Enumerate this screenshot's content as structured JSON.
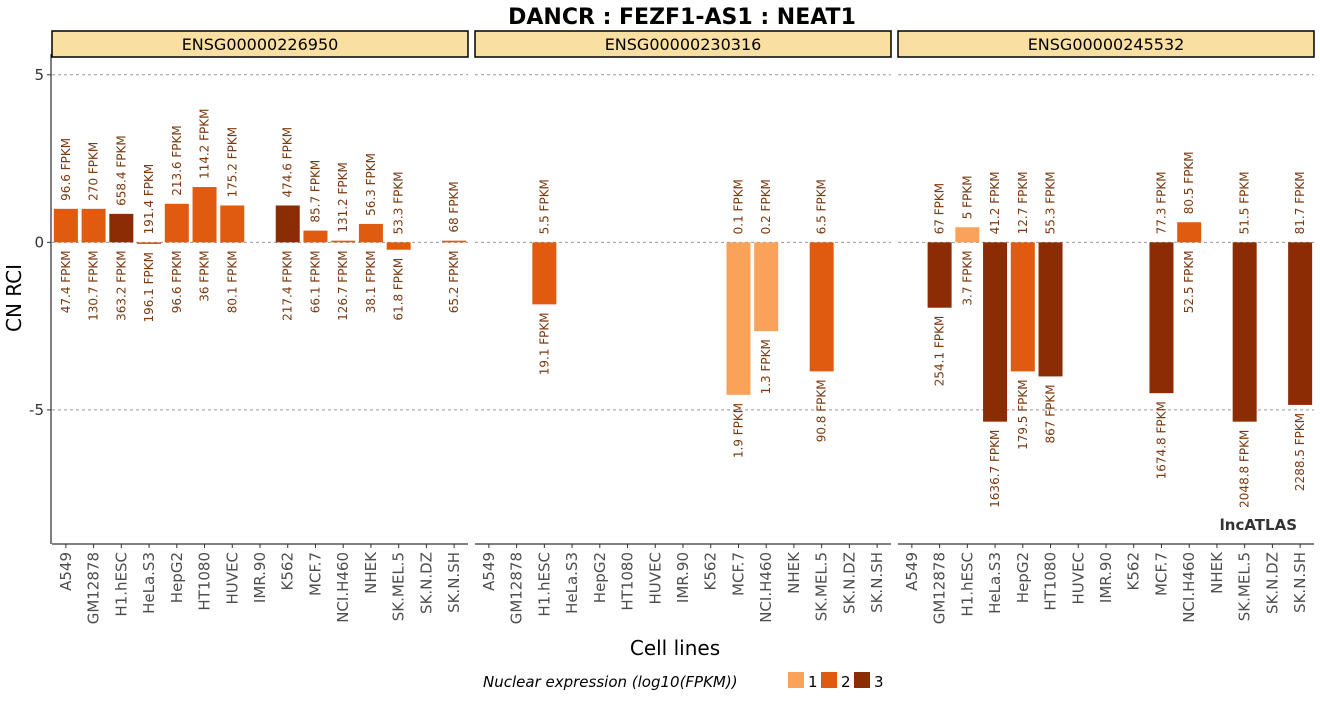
{
  "chart_data": {
    "type": "bar",
    "title": "DANCR : FEZF1-AS1 : NEAT1",
    "xlabel": "Cell lines",
    "ylabel": "CN RCI",
    "ylim": [
      -9.0,
      5.5
    ],
    "yticks": [
      5,
      0,
      -5
    ],
    "ytick_labels": [
      "5",
      "0",
      "-5"
    ],
    "grid": "dashed horizontal at ticks",
    "categories": [
      "A549",
      "GM12878",
      "H1.hESC",
      "HeLa.S3",
      "HepG2",
      "HT1080",
      "HUVEC",
      "IMR.90",
      "K562",
      "MCF.7",
      "NCI.H460",
      "NHEK",
      "SK.MEL.5",
      "SK.N.DZ",
      "SK.N.SH"
    ],
    "legend": {
      "title": "Nuclear expression (log10(FPKM))",
      "position": "bottom",
      "levels": [
        {
          "label": "1",
          "color": "#F9A25A"
        },
        {
          "label": "2",
          "color": "#E05A10"
        },
        {
          "label": "3",
          "color": "#8C2C05"
        }
      ]
    },
    "watermark": "lncATLAS",
    "panels": [
      {
        "strip": "ENSG00000226950",
        "bars": [
          {
            "cell": "A549",
            "value": 1.0,
            "level": 2,
            "top": "96.6 FPKM",
            "bottom": "47.4 FPKM"
          },
          {
            "cell": "GM12878",
            "value": 1.0,
            "level": 2,
            "top": "270 FPKM",
            "bottom": "130.7 FPKM"
          },
          {
            "cell": "H1.hESC",
            "value": 0.85,
            "level": 3,
            "top": "658.4 FPKM",
            "bottom": "363.2 FPKM"
          },
          {
            "cell": "HeLa.S3",
            "value": -0.05,
            "level": 2,
            "top": "191.4 FPKM",
            "bottom": "196.1 FPKM"
          },
          {
            "cell": "HepG2",
            "value": 1.15,
            "level": 2,
            "top": "213.6 FPKM",
            "bottom": "96.6 FPKM"
          },
          {
            "cell": "HT1080",
            "value": 1.65,
            "level": 2,
            "top": "114.2 FPKM",
            "bottom": "36 FPKM"
          },
          {
            "cell": "HUVEC",
            "value": 1.1,
            "level": 2,
            "top": "175.2 FPKM",
            "bottom": "80.1 FPKM"
          },
          {
            "cell": "K562",
            "value": 1.1,
            "level": 3,
            "top": "474.6 FPKM",
            "bottom": "217.4 FPKM"
          },
          {
            "cell": "MCF.7",
            "value": 0.35,
            "level": 2,
            "top": "85.7 FPKM",
            "bottom": "66.1 FPKM"
          },
          {
            "cell": "NCI.H460",
            "value": 0.05,
            "level": 2,
            "top": "131.2 FPKM",
            "bottom": "126.7 FPKM"
          },
          {
            "cell": "NHEK",
            "value": 0.55,
            "level": 2,
            "top": "56.3 FPKM",
            "bottom": "38.1 FPKM"
          },
          {
            "cell": "SK.MEL.5",
            "value": -0.22,
            "level": 2,
            "top": "53.3 FPKM",
            "bottom": "61.8 FPKM"
          },
          {
            "cell": "SK.N.SH",
            "value": 0.05,
            "level": 2,
            "top": "68 FPKM",
            "bottom": "65.2 FPKM"
          }
        ]
      },
      {
        "strip": "ENSG00000230316",
        "bars": [
          {
            "cell": "H1.hESC",
            "value": -1.85,
            "level": 2,
            "top": "5.5 FPKM",
            "bottom": "19.1 FPKM"
          },
          {
            "cell": "MCF.7",
            "value": -4.55,
            "level": 1,
            "top": "0.1 FPKM",
            "bottom": "1.9 FPKM"
          },
          {
            "cell": "NCI.H460",
            "value": -2.65,
            "level": 1,
            "top": "0.2 FPKM",
            "bottom": "1.3 FPKM"
          },
          {
            "cell": "SK.MEL.5",
            "value": -3.85,
            "level": 2,
            "top": "6.5 FPKM",
            "bottom": "90.8 FPKM"
          }
        ]
      },
      {
        "strip": "ENSG00000245532",
        "bars": [
          {
            "cell": "GM12878",
            "value": -1.95,
            "level": 3,
            "top": "67 FPKM",
            "bottom": "254.1 FPKM"
          },
          {
            "cell": "H1.hESC",
            "value": 0.45,
            "level": 1,
            "top": "5 FPKM",
            "bottom": "3.7 FPKM"
          },
          {
            "cell": "HeLa.S3",
            "value": -5.35,
            "level": 3,
            "top": "41.2 FPKM",
            "bottom": "1636.7 FPKM"
          },
          {
            "cell": "HepG2",
            "value": -3.85,
            "level": 2,
            "top": "12.7 FPKM",
            "bottom": "179.5 FPKM"
          },
          {
            "cell": "HT1080",
            "value": -4.0,
            "level": 3,
            "top": "55.3 FPKM",
            "bottom": "867 FPKM"
          },
          {
            "cell": "MCF.7",
            "value": -4.5,
            "level": 3,
            "top": "77.3 FPKM",
            "bottom": "1674.8 FPKM"
          },
          {
            "cell": "NCI.H460",
            "value": 0.6,
            "level": 2,
            "top": "80.5 FPKM",
            "bottom": "52.5 FPKM"
          },
          {
            "cell": "SK.MEL.5",
            "value": -5.35,
            "level": 3,
            "top": "51.5 FPKM",
            "bottom": "2048.8 FPKM"
          },
          {
            "cell": "SK.N.SH",
            "value": -4.85,
            "level": 3,
            "top": "81.7 FPKM",
            "bottom": "2288.5 FPKM"
          }
        ]
      }
    ]
  }
}
